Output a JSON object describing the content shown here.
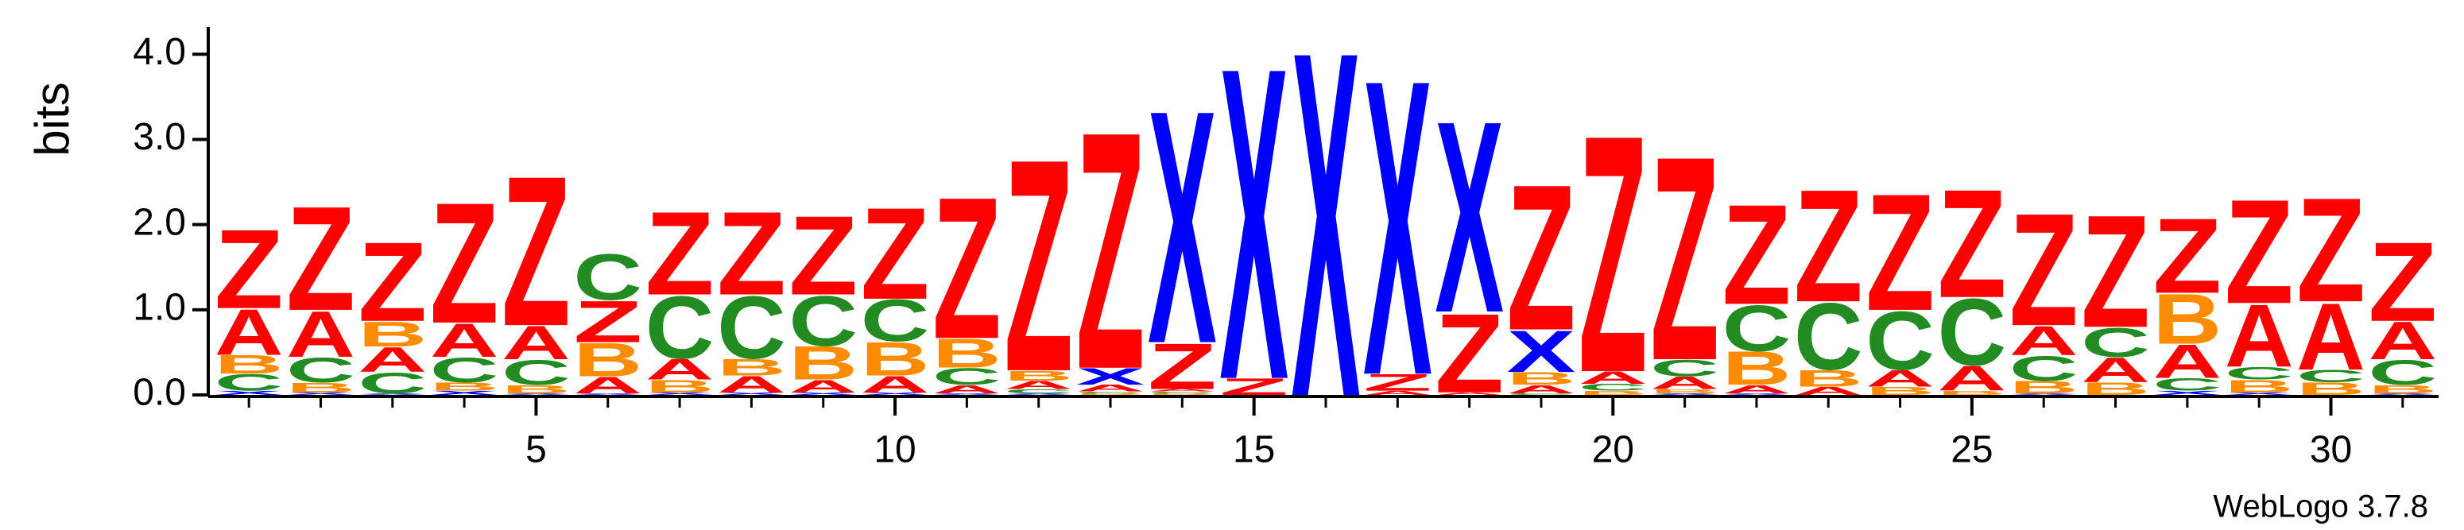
{
  "chart_data": {
    "type": "logo",
    "ylabel": "bits",
    "footer": "WebLogo 3.7.8",
    "x": [
      1,
      2,
      3,
      4,
      5,
      6,
      7,
      8,
      9,
      10,
      11,
      12,
      13,
      14,
      15,
      16,
      17,
      18,
      19,
      20,
      21,
      22,
      23,
      24,
      25,
      26,
      27,
      28,
      29,
      30,
      31
    ],
    "xlim": [
      0.5,
      31.5
    ],
    "xticks": [
      5,
      10,
      15,
      20,
      25,
      30
    ],
    "ylim": [
      0,
      4.32
    ],
    "yticks": [
      {
        "value": 0,
        "label": "0.0"
      },
      {
        "value": 1,
        "label": "1.0"
      },
      {
        "value": 2,
        "label": "2.0"
      },
      {
        "value": 3,
        "label": "3.0"
      },
      {
        "value": 4,
        "label": "4.0"
      }
    ],
    "series": [
      {
        "name": "A",
        "color": "#ff0000",
        "values": [
          0.55,
          0.55,
          0.3,
          0.4,
          0.4,
          0.2,
          0.25,
          0.2,
          0.15,
          0.2,
          0.1,
          0.1,
          0.08,
          0.03,
          0,
          0,
          0.05,
          0.03,
          0.1,
          0.15,
          0.15,
          0.1,
          0.1,
          0.2,
          0.3,
          0.35,
          0.3,
          0.4,
          0.75,
          0.8,
          0.45
        ]
      },
      {
        "name": "B",
        "color": "#ff8c00",
        "values": [
          0.22,
          0.12,
          0.3,
          0.1,
          0.1,
          0.4,
          0.15,
          0.2,
          0.4,
          0.4,
          0.35,
          0.12,
          0.02,
          0.02,
          0,
          0,
          0,
          0,
          0.15,
          0.05,
          0.05,
          0.4,
          0.2,
          0.1,
          0.05,
          0.15,
          0.15,
          0.6,
          0.15,
          0.15,
          0.1
        ]
      },
      {
        "name": "C",
        "color": "#228b22",
        "values": [
          0.2,
          0.3,
          0.25,
          0.3,
          0.3,
          0.55,
          0.75,
          0.75,
          0.6,
          0.5,
          0.2,
          0.05,
          0.02,
          0.02,
          0,
          0,
          0,
          0,
          0.02,
          0.08,
          0.2,
          0.55,
          0.8,
          0.7,
          0.8,
          0.3,
          0.35,
          0.15,
          0.15,
          0.15,
          0.3
        ]
      },
      {
        "name": "X",
        "color": "#0000ff",
        "values": [
          0.05,
          0.03,
          0.02,
          0.05,
          0.02,
          0.02,
          0.03,
          0.03,
          0.03,
          0.03,
          0.02,
          0.02,
          0.2,
          2.8,
          3.75,
          4.15,
          3.55,
          2.3,
          0.5,
          0,
          0.02,
          0.02,
          0,
          0,
          0,
          0.02,
          0,
          0.05,
          0.03,
          0,
          0.02
        ]
      },
      {
        "name": "Z",
        "color": "#ff0000",
        "values": [
          0.95,
          1.25,
          0.95,
          1.45,
          1.8,
          0.5,
          1.0,
          1.0,
          0.95,
          1.1,
          1.7,
          2.55,
          2.85,
          0.55,
          0.2,
          0,
          0.2,
          0.95,
          1.75,
          2.85,
          2.45,
          1.2,
          1.35,
          1.4,
          1.3,
          1.35,
          1.35,
          0.9,
          1.25,
          1.25,
          0.95
        ]
      }
    ]
  }
}
